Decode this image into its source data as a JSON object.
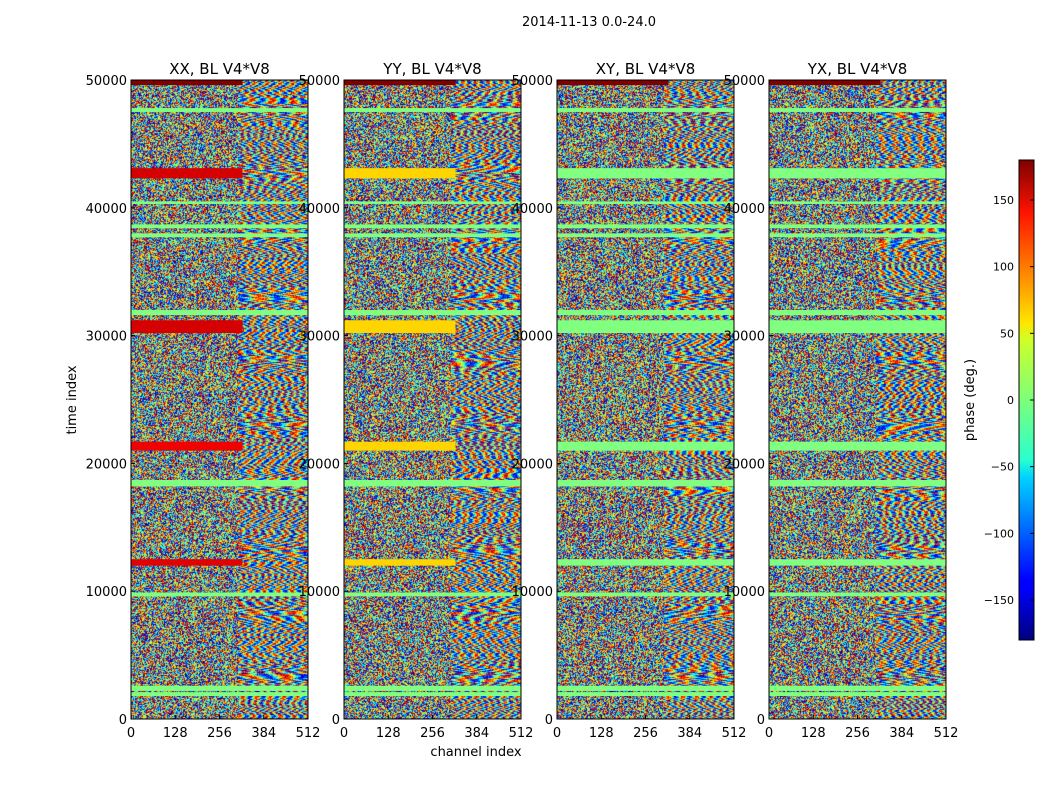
{
  "chart_data": {
    "type": "heatmap",
    "suptitle": "2014-11-13 0.0-24.0",
    "xlabel": "channel index",
    "ylabel": "time index",
    "xlim": [
      0,
      512
    ],
    "ylim": [
      0,
      50000
    ],
    "x_ticks": [
      0,
      128,
      256,
      384,
      512
    ],
    "y_ticks": [
      0,
      10000,
      20000,
      30000,
      40000,
      50000
    ],
    "panels": [
      {
        "title": "XX, BL V4*V8",
        "key": "XX"
      },
      {
        "title": "YY, BL V4*V8",
        "key": "YY"
      },
      {
        "title": "XY, BL V4*V8",
        "key": "XY"
      },
      {
        "title": "YX, BL V4*V8",
        "key": "YX"
      }
    ],
    "colorbar": {
      "label": "phase (deg.)",
      "colormap": "jet",
      "range": [
        -180,
        180
      ],
      "ticks": [
        -150,
        -100,
        -50,
        0,
        50,
        100,
        150
      ],
      "tick_labels": [
        "−150",
        "−100",
        "−50",
        "0",
        "50",
        "100",
        "150"
      ]
    },
    "flagged_rows": [
      {
        "from": 49600,
        "to": 50000,
        "phase": 180
      },
      {
        "from": 47500,
        "to": 47800,
        "phase": 0
      },
      {
        "from": 42300,
        "to": 43100,
        "phase": 150
      },
      {
        "from": 40300,
        "to": 40500,
        "phase": 0
      },
      {
        "from": 38400,
        "to": 38700,
        "phase": 0
      },
      {
        "from": 37700,
        "to": 38000,
        "phase": 0
      },
      {
        "from": 31600,
        "to": 32000,
        "phase": 0
      },
      {
        "from": 30200,
        "to": 31200,
        "phase": 150
      },
      {
        "from": 21000,
        "to": 21700,
        "phase": 140
      },
      {
        "from": 18200,
        "to": 18700,
        "phase": 0
      },
      {
        "from": 12000,
        "to": 12500,
        "phase": 145
      },
      {
        "from": 9600,
        "to": 9900,
        "phase": 0
      },
      {
        "from": 2200,
        "to": 2600,
        "phase": 0
      },
      {
        "from": 1800,
        "to": 2100,
        "phase": 0
      }
    ]
  }
}
